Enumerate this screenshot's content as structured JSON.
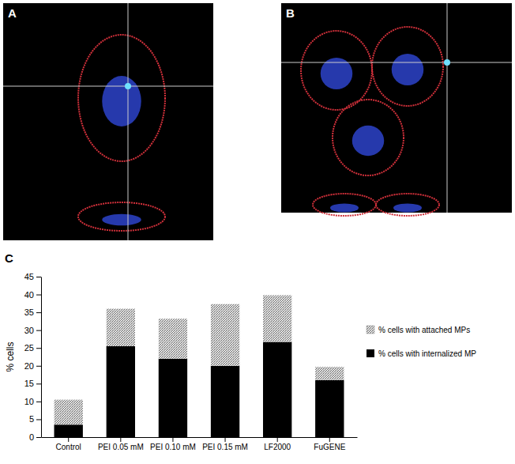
{
  "figure": {
    "panel_labels": [
      "A",
      "B",
      "C"
    ]
  },
  "chart_data": {
    "type": "bar",
    "stacked": true,
    "y_label": "% cells",
    "categories": [
      "Control",
      "PEI 0.05 mM",
      "PEI 0.10 mM",
      "PEI 0.15 mM",
      "LF2000",
      "FuGENE"
    ],
    "series": [
      {
        "name": "% cells with internalized MP",
        "color": "#000000",
        "values": [
          3.5,
          25.5,
          22,
          20,
          26.7,
          16
        ]
      },
      {
        "name": "% cells with attached MPs",
        "color": "#a0a0a0",
        "values": [
          7,
          10.5,
          11.2,
          17.3,
          13.1,
          3.7
        ]
      }
    ],
    "ylim": [
      0,
      45
    ],
    "yticks": [
      0,
      5,
      10,
      15,
      20,
      25,
      30,
      35,
      40,
      45
    ],
    "legend": "right"
  }
}
